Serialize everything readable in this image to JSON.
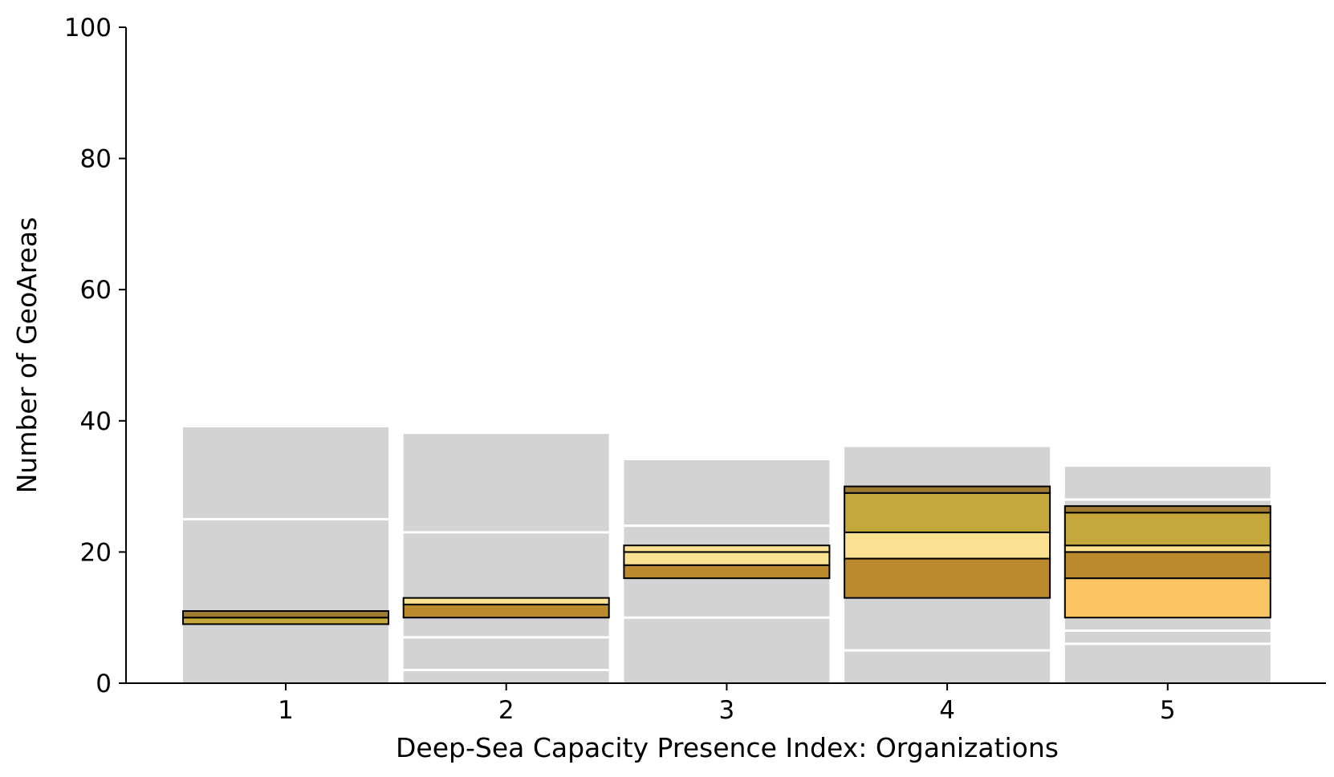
{
  "chart_data": {
    "type": "bar",
    "xlabel": "Deep-Sea Capacity Presence Index: Organizations",
    "ylabel": "Number of GeoAreas",
    "ylim": [
      0,
      100
    ],
    "y_ticks": [
      "0",
      "20",
      "40",
      "60",
      "80",
      "100"
    ],
    "categories": [
      "1",
      "2",
      "3",
      "4",
      "5"
    ],
    "grid": false,
    "colors": {
      "background_bar": "#d3d3d3",
      "divider": "#ffffff",
      "band_outline": "#000000",
      "dark_olive": "#9e7a32",
      "olive_gold": "#c4a83c",
      "bronze": "#bb8a2c",
      "pale_yellow": "#fbe293",
      "light_orange": "#fbc563"
    },
    "background_bars": [
      {
        "category": "1",
        "total": 39,
        "dividers": [
          25
        ]
      },
      {
        "category": "2",
        "total": 38,
        "dividers": [
          2,
          7,
          23
        ]
      },
      {
        "category": "3",
        "total": 34,
        "dividers": [
          10,
          24
        ]
      },
      {
        "category": "4",
        "total": 36,
        "dividers": [
          5
        ]
      },
      {
        "category": "5",
        "total": 33,
        "dividers": [
          6,
          8,
          28
        ]
      }
    ],
    "highlighted_stacks": [
      {
        "category": "1",
        "segments": [
          {
            "from": 9,
            "to": 10,
            "color": "olive_gold"
          },
          {
            "from": 10,
            "to": 11,
            "color": "dark_olive"
          }
        ]
      },
      {
        "category": "2",
        "segments": [
          {
            "from": 10,
            "to": 12,
            "color": "bronze"
          },
          {
            "from": 12,
            "to": 13,
            "color": "pale_yellow"
          }
        ]
      },
      {
        "category": "3",
        "segments": [
          {
            "from": 16,
            "to": 18,
            "color": "bronze"
          },
          {
            "from": 18,
            "to": 20,
            "color": "pale_yellow"
          },
          {
            "from": 20,
            "to": 21,
            "color": "pale_yellow"
          }
        ]
      },
      {
        "category": "4",
        "segments": [
          {
            "from": 13,
            "to": 19,
            "color": "bronze"
          },
          {
            "from": 19,
            "to": 23,
            "color": "pale_yellow"
          },
          {
            "from": 23,
            "to": 29,
            "color": "olive_gold"
          },
          {
            "from": 29,
            "to": 30,
            "color": "dark_olive"
          }
        ]
      },
      {
        "category": "5",
        "segments": [
          {
            "from": 10,
            "to": 16,
            "color": "light_orange"
          },
          {
            "from": 16,
            "to": 20,
            "color": "bronze"
          },
          {
            "from": 20,
            "to": 21,
            "color": "pale_yellow"
          },
          {
            "from": 21,
            "to": 26,
            "color": "olive_gold"
          },
          {
            "from": 26,
            "to": 27,
            "color": "dark_olive"
          }
        ]
      }
    ]
  }
}
